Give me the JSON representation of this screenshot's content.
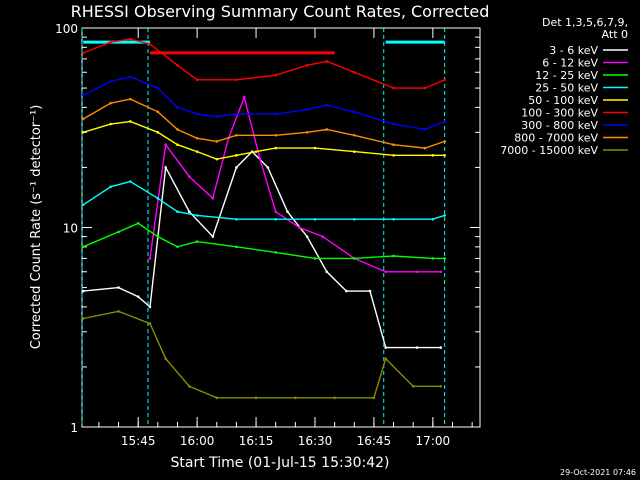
{
  "chart_data": {
    "type": "line",
    "title": "RHESSI Observing Summary Count Rates, Corrected",
    "xlabel": "Start Time (01-Jul-15 15:30:42)",
    "ylabel": "Corrected Count Rate (s⁻¹ detector⁻¹)",
    "y_scale": "log",
    "ylim": [
      1,
      100
    ],
    "xlim": [
      "15:30:42",
      "17:12:00"
    ],
    "x_ticks": [
      "15:45",
      "16:00",
      "16:15",
      "16:30",
      "16:45",
      "17:00"
    ],
    "y_ticks": [
      "1",
      "10",
      "100"
    ],
    "grid": false,
    "legend_header": [
      "Det 1,3,5,6,7,9,",
      "Att 0"
    ],
    "legend_position": "right",
    "series": [
      {
        "name": "3 - 6 keV",
        "color": "#ffffff",
        "x": [
          "15:31",
          "15:40",
          "15:45",
          "15:48",
          "15:52",
          "15:58",
          "16:04",
          "16:10",
          "16:14",
          "16:18",
          "16:23",
          "16:28",
          "16:33",
          "16:38",
          "16:44",
          "16:48",
          "16:56",
          "17:02"
        ],
        "y": [
          4.8,
          5.0,
          4.5,
          4.0,
          20,
          12,
          9,
          20,
          24,
          20,
          12,
          9,
          6,
          4.8,
          4.8,
          2.5,
          2.5,
          2.5
        ]
      },
      {
        "name": "6 - 12 keV",
        "color": "#ff00ff",
        "x": [
          "15:48",
          "15:52",
          "15:58",
          "16:04",
          "16:08",
          "16:12",
          "16:16",
          "16:20",
          "16:26",
          "16:32",
          "16:40",
          "16:48",
          "16:56",
          "17:02"
        ],
        "y": [
          7.0,
          26,
          18,
          14,
          28,
          45,
          22,
          12,
          10,
          9,
          7,
          6,
          6,
          6
        ]
      },
      {
        "name": "12 - 25 keV",
        "color": "#00ff00",
        "x": [
          "15:31",
          "15:40",
          "15:45",
          "15:50",
          "15:55",
          "16:00",
          "16:10",
          "16:20",
          "16:30",
          "16:40",
          "16:50",
          "17:00",
          "17:03"
        ],
        "y": [
          8.0,
          9.5,
          10.5,
          9.0,
          8.0,
          8.5,
          8.0,
          7.5,
          7.0,
          7.0,
          7.2,
          7.0,
          7.0
        ]
      },
      {
        "name": "25 - 50 keV",
        "color": "#00ffff",
        "x": [
          "15:31",
          "15:38",
          "15:43",
          "15:50",
          "15:55",
          "16:00",
          "16:10",
          "16:20",
          "16:30",
          "16:40",
          "16:50",
          "17:00",
          "17:03"
        ],
        "y": [
          13,
          16,
          17,
          14,
          12,
          11.5,
          11,
          11,
          11,
          11,
          11,
          11,
          11.5
        ]
      },
      {
        "name": "50 - 100 keV",
        "color": "#ffff00",
        "x": [
          "15:31",
          "15:38",
          "15:43",
          "15:50",
          "15:55",
          "16:00",
          "16:05",
          "16:10",
          "16:15",
          "16:20",
          "16:30",
          "16:40",
          "16:50",
          "17:00",
          "17:03"
        ],
        "y": [
          30,
          33,
          34,
          30,
          26,
          24,
          22,
          23,
          24,
          25,
          25,
          24,
          23,
          23,
          23
        ]
      },
      {
        "name": "100 - 300 keV",
        "color": "#ff0000",
        "x": [
          "15:31",
          "15:38",
          "15:43",
          "15:48",
          "15:55",
          "16:00",
          "16:10",
          "16:20",
          "16:28",
          "16:33",
          "16:40",
          "16:50",
          "16:58",
          "17:03"
        ],
        "y": [
          75,
          85,
          88,
          83,
          65,
          55,
          55,
          58,
          65,
          68,
          60,
          50,
          50,
          55
        ]
      },
      {
        "name": "300 - 800 keV",
        "color": "#0000ff",
        "x": [
          "15:31",
          "15:38",
          "15:43",
          "15:50",
          "15:55",
          "16:00",
          "16:05",
          "16:10",
          "16:20",
          "16:28",
          "16:33",
          "16:40",
          "16:50",
          "16:58",
          "17:03"
        ],
        "y": [
          46,
          54,
          57,
          50,
          40,
          37,
          36,
          37,
          37,
          39,
          41,
          38,
          33,
          31,
          34
        ]
      },
      {
        "name": "800 - 7000 keV",
        "color": "#ff8c00",
        "x": [
          "15:31",
          "15:38",
          "15:43",
          "15:50",
          "15:55",
          "16:00",
          "16:05",
          "16:10",
          "16:20",
          "16:28",
          "16:33",
          "16:40",
          "16:50",
          "16:58",
          "17:03"
        ],
        "y": [
          35,
          42,
          44,
          38,
          31,
          28,
          27,
          29,
          29,
          30,
          31,
          29,
          26,
          25,
          27
        ]
      },
      {
        "name": "7000 - 15000 keV",
        "color": "#8b8b00",
        "x": [
          "15:31",
          "15:40",
          "15:48",
          "15:52",
          "15:58",
          "16:05",
          "16:15",
          "16:25",
          "16:35",
          "16:45",
          "16:48",
          "16:55",
          "17:02"
        ],
        "y": [
          3.5,
          3.8,
          3.3,
          2.2,
          1.6,
          1.4,
          1.4,
          1.4,
          1.4,
          1.4,
          2.2,
          1.6,
          1.6
        ]
      }
    ],
    "bars": [
      {
        "color": "#00ffff",
        "x": [
          "15:31",
          "15:48"
        ],
        "y": 85
      },
      {
        "color": "#ff0000",
        "x": [
          "15:48",
          "16:35"
        ],
        "y": 75
      },
      {
        "color": "#00ffff",
        "x": [
          "16:48",
          "17:03"
        ],
        "y": 85
      }
    ],
    "vlines": [
      {
        "color": "#00ffff",
        "x": "15:30:42"
      },
      {
        "color": "#00ffff",
        "x": "15:47:30"
      },
      {
        "color": "#00ffff",
        "x": "16:47:30"
      },
      {
        "color": "#00ffff",
        "x": "17:03:00"
      }
    ]
  },
  "footer": {
    "timestamp": "29-Oct-2021 07:46"
  }
}
